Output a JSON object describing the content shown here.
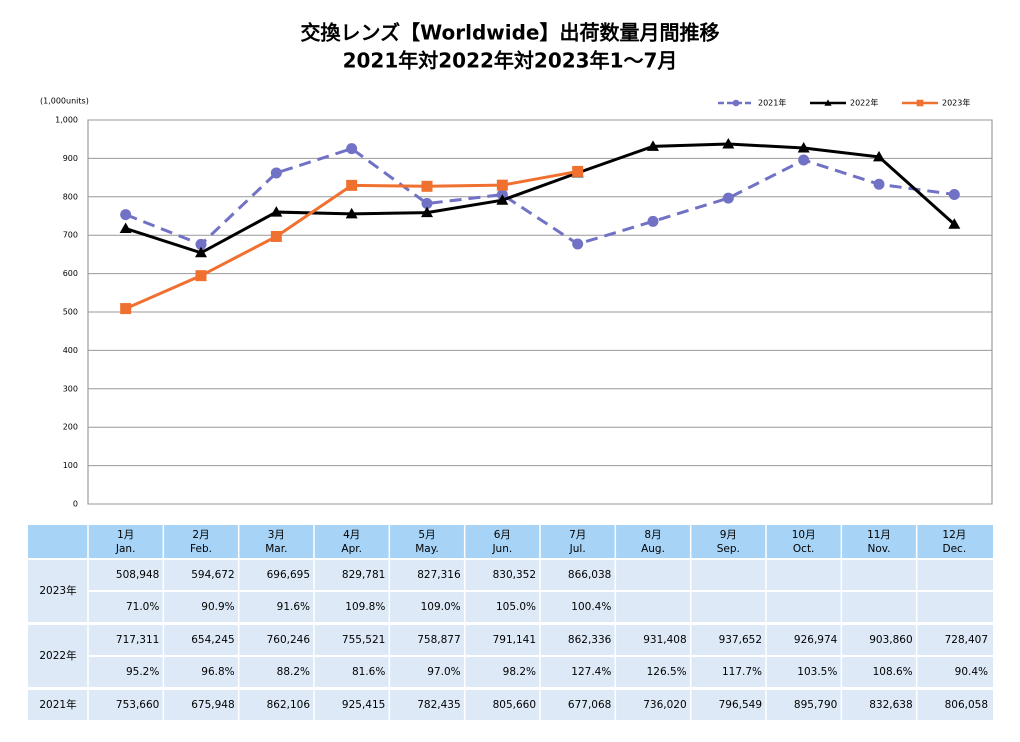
{
  "chart_data": {
    "type": "line",
    "title": "交換レンズ【Worldwide】出荷数量月間推移",
    "subtitle": "2021年対2022年対2023年1～7月",
    "y_unit": "(1,000units)",
    "categories": [
      "1月",
      "2月",
      "3月",
      "4月",
      "5月",
      "6月",
      "7月",
      "8月",
      "9月",
      "10月",
      "11月",
      "12月"
    ],
    "categories_en": [
      "Jan.",
      "Feb.",
      "Mar.",
      "Apr.",
      "May.",
      "Jun.",
      "Jul.",
      "Aug.",
      "Sep.",
      "Oct.",
      "Nov.",
      "Dec."
    ],
    "ylim": [
      0,
      1000
    ],
    "yticks": [
      0,
      100,
      200,
      300,
      400,
      500,
      600,
      700,
      800,
      900,
      {
        "value": 1000,
        "label": "1,000"
      }
    ],
    "grid": true,
    "legend": "top-right",
    "series": [
      {
        "name": "2021年",
        "color": "#7171c6",
        "dash": true,
        "marker": "circle",
        "values": [
          753.66,
          675.948,
          862.106,
          925.415,
          782.435,
          805.66,
          677.068,
          736.02,
          796.549,
          895.79,
          832.638,
          806.058
        ],
        "value_labels": [
          "753,660",
          "675,948",
          "862,106",
          "925,415",
          "782,435",
          "805,660",
          "677,068",
          "736,020",
          "796,549",
          "895,790",
          "832,638",
          "806,058"
        ]
      },
      {
        "name": "2022年",
        "color": "#000000",
        "dash": false,
        "marker": "triangle",
        "values": [
          717.311,
          654.245,
          760.246,
          755.521,
          758.877,
          791.141,
          862.336,
          931.408,
          937.652,
          926.974,
          903.86,
          728.407
        ],
        "value_labels": [
          "717,311",
          "654,245",
          "760,246",
          "755,521",
          "758,877",
          "791,141",
          "862,336",
          "931,408",
          "937,652",
          "926,974",
          "903,860",
          "728,407"
        ]
      },
      {
        "name": "2023年",
        "color": "#f07030",
        "dash": false,
        "marker": "square",
        "values": [
          508.948,
          594.672,
          696.695,
          829.781,
          827.316,
          830.352,
          866.038,
          null,
          null,
          null,
          null,
          null
        ],
        "value_labels": [
          "508,948",
          "594,672",
          "696,695",
          "829,781",
          "827,316",
          "830,352",
          "866,038",
          null,
          null,
          null,
          null,
          null
        ]
      }
    ]
  },
  "table": {
    "ratios_2023": [
      "71.0%",
      "90.9%",
      "91.6%",
      "109.8%",
      "109.0%",
      "105.0%",
      "100.4%"
    ],
    "ratios_2022": [
      "95.2%",
      "96.8%",
      "88.2%",
      "81.6%",
      "97.0%",
      "98.2%",
      "127.4%",
      "126.5%",
      "117.7%",
      "103.5%",
      "108.6%",
      "90.4%"
    ]
  }
}
